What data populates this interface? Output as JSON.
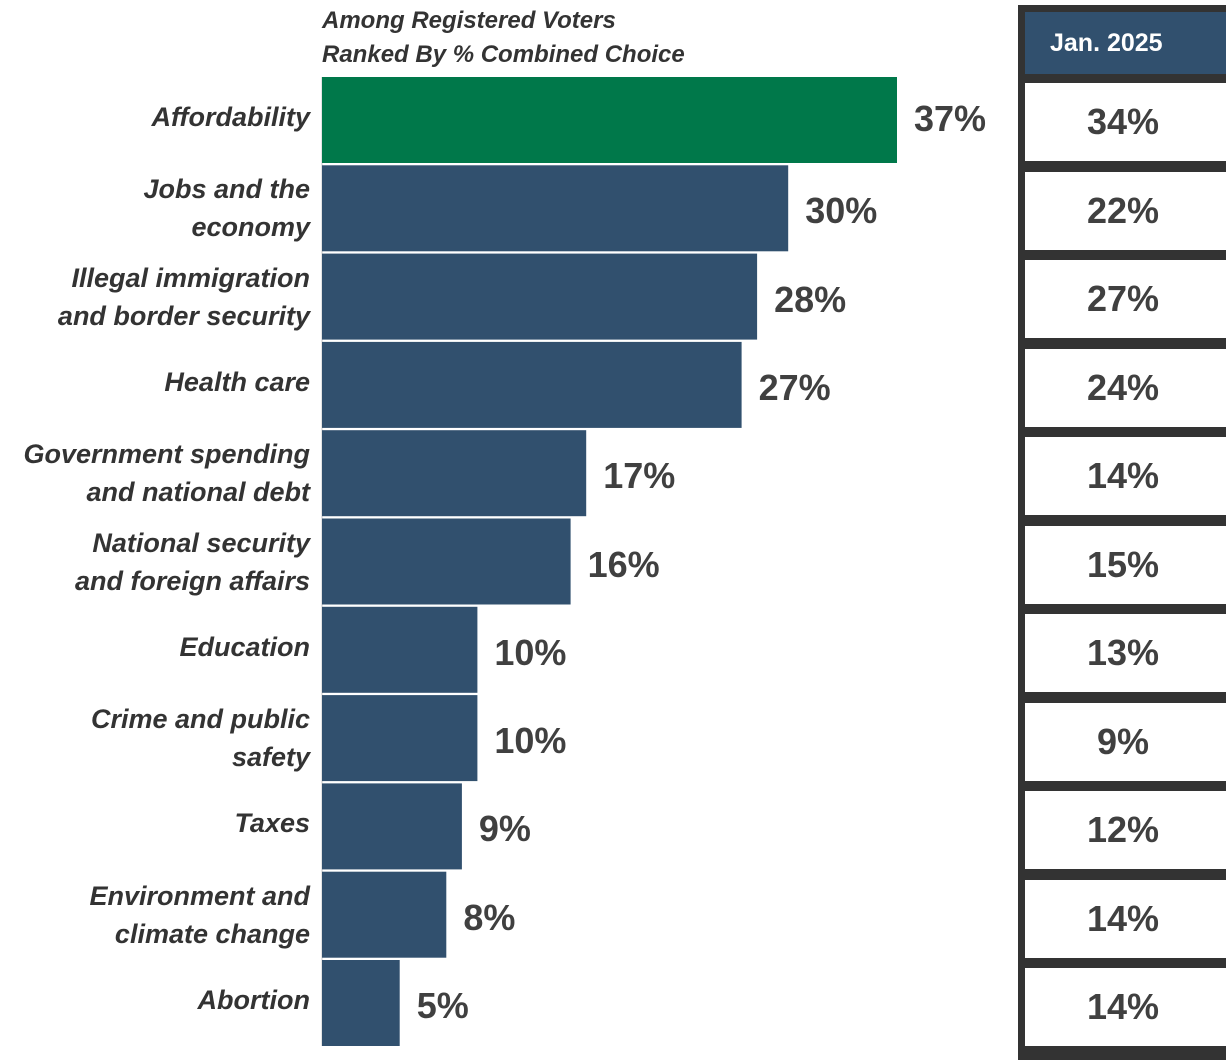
{
  "subtitle": {
    "line1": "Among Registered Voters",
    "line2": "Ranked By % Combined Choice"
  },
  "colors": {
    "highlight": "#00784a",
    "bar": "#31506e",
    "header_bg": "#31506e",
    "table_border": "#333333"
  },
  "side_table": {
    "header": "Jan. 2025",
    "values": [
      "34%",
      "22%",
      "27%",
      "24%",
      "14%",
      "15%",
      "13%",
      "9%",
      "12%",
      "14%",
      "14%"
    ]
  },
  "chart_data": {
    "type": "bar",
    "orientation": "horizontal",
    "categories": [
      "Affordability",
      "Jobs and the economy",
      "Illegal immigration and border security",
      "Health care",
      "Government spending and national debt",
      "National security and foreign affairs",
      "Education",
      "Crime and public safety",
      "Taxes",
      "Environment and climate change",
      "Abortion"
    ],
    "category_lines": [
      [
        "Affordability"
      ],
      [
        "Jobs and the",
        "economy"
      ],
      [
        "Illegal immigration",
        "and border security"
      ],
      [
        "Health care"
      ],
      [
        "Government spending",
        "and national debt"
      ],
      [
        "National security",
        "and foreign affairs"
      ],
      [
        "Education"
      ],
      [
        "Crime and public",
        "safety"
      ],
      [
        "Taxes"
      ],
      [
        "Environment and",
        "climate change"
      ],
      [
        "Abortion"
      ]
    ],
    "values": [
      37,
      30,
      28,
      27,
      17,
      16,
      10,
      10,
      9,
      8,
      5
    ],
    "value_labels": [
      "37%",
      "30%",
      "28%",
      "27%",
      "17%",
      "16%",
      "10%",
      "10%",
      "9%",
      "8%",
      "5%"
    ],
    "highlight_index": 0,
    "xlim": [
      0,
      37
    ],
    "grid": false
  }
}
